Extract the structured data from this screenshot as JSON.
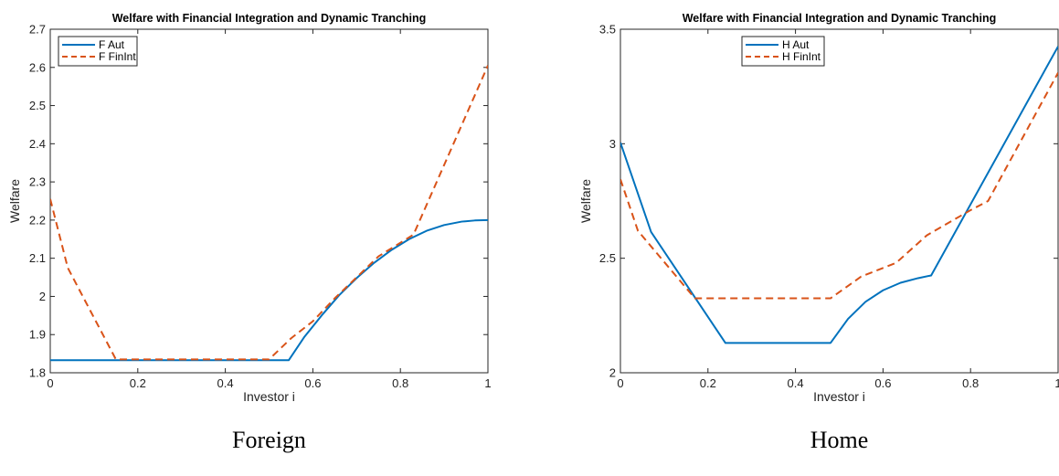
{
  "chart_data": [
    {
      "type": "line",
      "title": "Welfare with Financial Integration and Dynamic Tranching",
      "xlabel": "Investor i",
      "ylabel": "Welfare",
      "caption": "Foreign",
      "xlim": [
        0,
        1
      ],
      "ylim": [
        1.8,
        2.7
      ],
      "xticks": [
        0,
        0.2,
        0.4,
        0.6,
        0.8,
        1
      ],
      "xtick_labels": [
        "0",
        "0.2",
        "0.4",
        "0.6",
        "0.8",
        "1"
      ],
      "yticks": [
        1.8,
        1.9,
        2.0,
        2.1,
        2.2,
        2.3,
        2.4,
        2.5,
        2.6,
        2.7
      ],
      "ytick_labels": [
        "1.8",
        "1.9",
        "2",
        "2.1",
        "2.2",
        "2.3",
        "2.4",
        "2.5",
        "2.6",
        "2.7"
      ],
      "grid": false,
      "legend_position": "top-left",
      "series": [
        {
          "name": "F Aut",
          "color": "#0072BD",
          "dash": "solid",
          "x": [
            0,
            0.545,
            0.58,
            0.62,
            0.66,
            0.7,
            0.74,
            0.78,
            0.82,
            0.86,
            0.9,
            0.94,
            0.97,
            1.0
          ],
          "y": [
            1.833,
            1.833,
            1.893,
            1.95,
            2.003,
            2.048,
            2.088,
            2.122,
            2.15,
            2.172,
            2.187,
            2.196,
            2.199,
            2.2
          ]
        },
        {
          "name": "F FinInt",
          "color": "#D95319",
          "dash": "dashed",
          "x": [
            0,
            0.04,
            0.15,
            0.5,
            0.55,
            0.6,
            0.65,
            0.7,
            0.75,
            0.83,
            1.0
          ],
          "y": [
            2.255,
            2.075,
            1.835,
            1.835,
            1.89,
            1.935,
            1.995,
            2.05,
            2.105,
            2.162,
            2.605
          ]
        }
      ]
    },
    {
      "type": "line",
      "title": "Welfare with Financial Integration and Dynamic Tranching",
      "xlabel": "Investor i",
      "ylabel": "Welfare",
      "caption": "Home",
      "xlim": [
        0,
        1
      ],
      "ylim": [
        2.0,
        3.5
      ],
      "xticks": [
        0,
        0.2,
        0.4,
        0.6,
        0.8,
        1
      ],
      "xtick_labels": [
        "0",
        "0.2",
        "0.4",
        "0.6",
        "0.8",
        "1"
      ],
      "yticks": [
        2.0,
        2.5,
        3.0,
        3.5
      ],
      "ytick_labels": [
        "2",
        "2.5",
        "3",
        "3.5"
      ],
      "grid": false,
      "legend_position": "top-center",
      "series": [
        {
          "name": "H Aut",
          "color": "#0072BD",
          "dash": "solid",
          "x": [
            0,
            0.07,
            0.24,
            0.48,
            0.52,
            0.56,
            0.6,
            0.64,
            0.68,
            0.71,
            1.0
          ],
          "y": [
            3.005,
            2.615,
            2.13,
            2.13,
            2.235,
            2.31,
            2.36,
            2.393,
            2.413,
            2.425,
            3.425
          ]
        },
        {
          "name": "H FinInt",
          "color": "#D95319",
          "dash": "dashed",
          "x": [
            0,
            0.04,
            0.17,
            0.48,
            0.55,
            0.63,
            0.7,
            0.8,
            0.84,
            1.0
          ],
          "y": [
            2.845,
            2.62,
            2.325,
            2.325,
            2.42,
            2.48,
            2.6,
            2.71,
            2.75,
            3.31
          ]
        }
      ]
    }
  ]
}
